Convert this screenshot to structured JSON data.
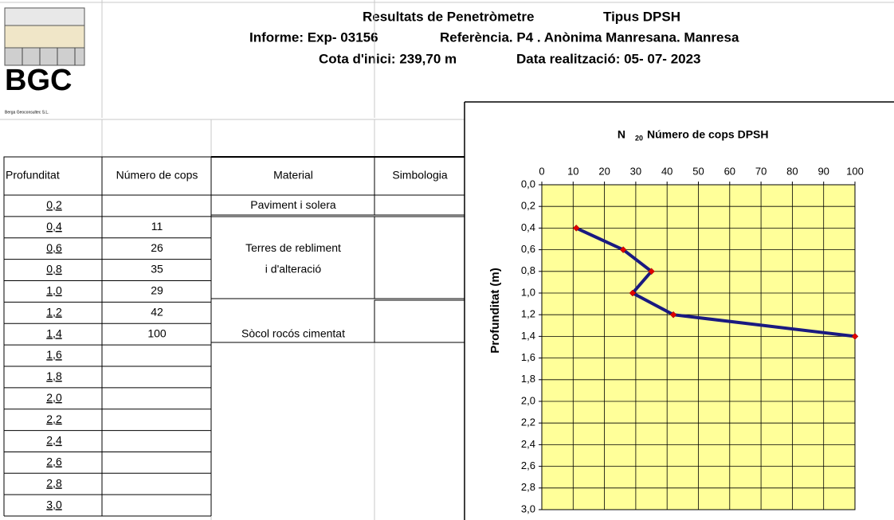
{
  "header": {
    "logo": "BGC",
    "company": "Berga Geoconsultec S.L.",
    "lines": [
      [
        "Resultats de Penetròmetre",
        "Tipus DPSH"
      ],
      [
        "Informe: Exp- 03156",
        "Referència. P4 . Anònima Manresana.  Manresa"
      ],
      [
        "Cota d'inici: 239,70 m",
        "Data realització: 05- 07- 2023"
      ]
    ]
  },
  "table": {
    "columns": [
      "Profunditat",
      "Número de cops",
      "Material",
      "Simbologia"
    ],
    "rows": [
      [
        "0,2",
        null,
        "Paviment i solera"
      ],
      [
        "0,4",
        11,
        null
      ],
      [
        "0,6",
        26,
        "Terres de rebliment"
      ],
      [
        "0,8",
        35,
        "i d'alteració"
      ],
      [
        "1,0",
        29,
        null
      ],
      [
        "1,2",
        42,
        null
      ],
      [
        "1,4",
        100,
        "Sòcol rocós cimentat"
      ],
      [
        "1,6",
        null,
        null
      ],
      [
        "1,8",
        null,
        null
      ],
      [
        "2,0",
        null,
        null
      ],
      [
        "2,2",
        null,
        null
      ],
      [
        "2,4",
        null,
        null
      ],
      [
        "2,6",
        null,
        null
      ],
      [
        "2,8",
        null,
        null
      ],
      [
        "3,0",
        null,
        null
      ]
    ]
  },
  "chart_data": {
    "type": "line",
    "title_symbol": "N",
    "title_subscript": "20",
    "title": "Número de cops DPSH",
    "ylabel": "Profunditat (m)",
    "series": [
      {
        "color": "#1a1a80",
        "marker_color": "#e00000",
        "x": [
          11,
          26,
          35,
          29,
          42,
          100
        ],
        "values": [
          0.4,
          0.6,
          0.8,
          1.0,
          1.2,
          1.4
        ]
      }
    ],
    "xlim": [
      0,
      100
    ],
    "xticks": [
      0,
      10,
      20,
      30,
      40,
      50,
      60,
      70,
      80,
      90,
      100
    ],
    "ylim": [
      0,
      3.0
    ],
    "y_inverted": true,
    "yticks": [
      {
        "value": 0,
        "label": "0,0"
      },
      {
        "value": 0.2,
        "label": "0,2"
      },
      {
        "value": 0.4,
        "label": "0,4"
      },
      {
        "value": 0.6,
        "label": "0,6"
      },
      {
        "value": 0.8,
        "label": "0,8"
      },
      {
        "value": 1.0,
        "label": "1,0"
      },
      {
        "value": 1.2,
        "label": "1,2"
      },
      {
        "value": 1.4,
        "label": "1,4"
      },
      {
        "value": 1.6,
        "label": "1,6"
      },
      {
        "value": 1.8,
        "label": "1,8"
      },
      {
        "value": 2.0,
        "label": "2,0"
      },
      {
        "value": 2.2,
        "label": "2,2"
      },
      {
        "value": 2.4,
        "label": "2,4"
      },
      {
        "value": 2.6,
        "label": "2,6"
      },
      {
        "value": 2.8,
        "label": "2,8"
      },
      {
        "value": 3.0,
        "label": "3,0"
      }
    ],
    "grid": true,
    "plot_background": "#ffff99"
  }
}
